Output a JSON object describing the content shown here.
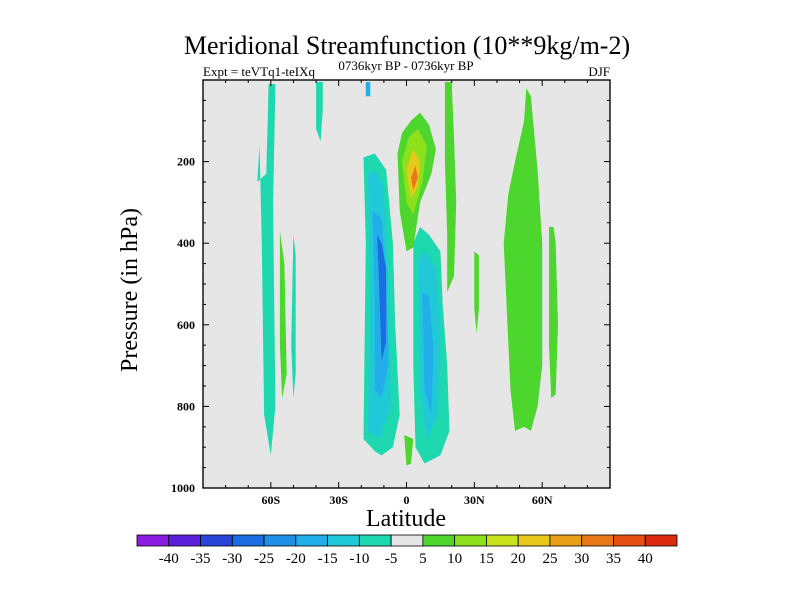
{
  "chart_data": {
    "type": "contour",
    "title": "Meridional Streamfunction (10**9kg/m-2)",
    "subtitle_left": "Expt = teVTq1-teIXq",
    "subtitle_center": "0736kyr BP - 0736kyr BP",
    "subtitle_right": "DJF",
    "xlabel": "Latitude",
    "ylabel": "Pressure (in hPa)",
    "xlim": [
      -90,
      90
    ],
    "ylim": [
      1000,
      0
    ],
    "x_ticks": [
      {
        "value": -60,
        "label": "60S"
      },
      {
        "value": -30,
        "label": "30S"
      },
      {
        "value": 0,
        "label": "0"
      },
      {
        "value": 30,
        "label": "30N"
      },
      {
        "value": 60,
        "label": "60N"
      }
    ],
    "y_ticks": [
      {
        "value": 200,
        "label": "200"
      },
      {
        "value": 400,
        "label": "400"
      },
      {
        "value": 600,
        "label": "600"
      },
      {
        "value": 800,
        "label": "800"
      },
      {
        "value": 1000,
        "label": "1000"
      }
    ],
    "colorbar": {
      "labels": [
        "-40",
        "-35",
        "-30",
        "-25",
        "-20",
        "-15",
        "-10",
        "-5",
        "5",
        "10",
        "15",
        "20",
        "25",
        "30",
        "35",
        "40"
      ],
      "colors": [
        "#8a1be0",
        "#5a1fd8",
        "#2a44d8",
        "#1a6ee0",
        "#1e8fe6",
        "#22aee8",
        "#20c8d8",
        "#1ed8b0",
        "#e6e6e6",
        "#4cd62e",
        "#8ee01c",
        "#c8e21a",
        "#e8c81a",
        "#e8a01a",
        "#e87818",
        "#e45014",
        "#dc2a10"
      ]
    },
    "regions": [
      {
        "level": -10,
        "color": "#1ed8b0",
        "points": [
          [
            -65,
            160
          ],
          [
            -64,
            400
          ],
          [
            -63,
            820
          ],
          [
            -60,
            920
          ],
          [
            -58,
            800
          ],
          [
            -59,
            300
          ],
          [
            -58,
            10
          ],
          [
            -61,
            10
          ],
          [
            -62,
            230
          ],
          [
            -66,
            250
          ]
        ]
      },
      {
        "level": -10,
        "color": "#1ed8b0",
        "points": [
          [
            -50,
            380
          ],
          [
            -51,
            650
          ],
          [
            -50,
            780
          ],
          [
            -49,
            720
          ],
          [
            -49,
            430
          ]
        ]
      },
      {
        "level": -10,
        "color": "#1ed8b0",
        "points": [
          [
            -40,
            5
          ],
          [
            -40,
            120
          ],
          [
            -38,
            150
          ],
          [
            -37,
            70
          ],
          [
            -37,
            5
          ]
        ]
      },
      {
        "level": -10,
        "color": "#1ed8b0",
        "points": [
          [
            -19,
            190
          ],
          [
            -18,
            400
          ],
          [
            -19,
            880
          ],
          [
            -14,
            910
          ],
          [
            -11,
            920
          ],
          [
            -6,
            900
          ],
          [
            -3,
            820
          ],
          [
            -5,
            600
          ],
          [
            -6,
            400
          ],
          [
            -9,
            220
          ],
          [
            -14,
            180
          ]
        ]
      },
      {
        "level": -15,
        "color": "#20c8d8",
        "points": [
          [
            -17,
            230
          ],
          [
            -16,
            500
          ],
          [
            -17,
            860
          ],
          [
            -12,
            880
          ],
          [
            -7,
            800
          ],
          [
            -8,
            500
          ],
          [
            -10,
            260
          ],
          [
            -14,
            220
          ]
        ]
      },
      {
        "level": -20,
        "color": "#22aee8",
        "points": [
          [
            -15,
            320
          ],
          [
            -14,
            520
          ],
          [
            -14,
            760
          ],
          [
            -11,
            780
          ],
          [
            -8,
            700
          ],
          [
            -9,
            480
          ],
          [
            -11,
            340
          ]
        ]
      },
      {
        "level": -25,
        "color": "#1a6ee0",
        "points": [
          [
            -13,
            380
          ],
          [
            -12,
            520
          ],
          [
            -11,
            690
          ],
          [
            -9,
            640
          ],
          [
            -9,
            460
          ],
          [
            -11,
            400
          ]
        ]
      },
      {
        "level": -10,
        "color": "#1ed8b0",
        "points": [
          [
            3,
            400
          ],
          [
            3,
            700
          ],
          [
            4,
            900
          ],
          [
            8,
            940
          ],
          [
            15,
            920
          ],
          [
            19,
            860
          ],
          [
            18,
            700
          ],
          [
            16,
            550
          ],
          [
            15,
            420
          ],
          [
            10,
            380
          ],
          [
            6,
            360
          ]
        ]
      },
      {
        "level": -15,
        "color": "#20c8d8",
        "points": [
          [
            5,
            440
          ],
          [
            6,
            760
          ],
          [
            9,
            880
          ],
          [
            14,
            820
          ],
          [
            15,
            600
          ],
          [
            13,
            460
          ],
          [
            8,
            420
          ]
        ]
      },
      {
        "level": -20,
        "color": "#22aee8",
        "points": [
          [
            7,
            520
          ],
          [
            8,
            760
          ],
          [
            11,
            820
          ],
          [
            12,
            660
          ],
          [
            10,
            530
          ]
        ]
      },
      {
        "level": -20,
        "color": "#22aee8",
        "points": [
          [
            -18,
            5
          ],
          [
            -18,
            40
          ],
          [
            -16,
            40
          ],
          [
            -16,
            5
          ]
        ]
      },
      {
        "level": 5,
        "color": "#4cd62e",
        "points": [
          [
            -4,
            180
          ],
          [
            -3,
            320
          ],
          [
            0,
            420
          ],
          [
            3,
            410
          ],
          [
            6,
            300
          ],
          [
            11,
            230
          ],
          [
            13,
            170
          ],
          [
            10,
            110
          ],
          [
            6,
            80
          ],
          [
            2,
            100
          ],
          [
            -2,
            130
          ]
        ]
      },
      {
        "level": 10,
        "color": "#8ee01c",
        "points": [
          [
            -2,
            200
          ],
          [
            0,
            300
          ],
          [
            3,
            330
          ],
          [
            7,
            250
          ],
          [
            9,
            160
          ],
          [
            5,
            120
          ],
          [
            1,
            140
          ]
        ]
      },
      {
        "level": 15,
        "color": "#e8c81a",
        "points": [
          [
            0,
            220
          ],
          [
            2,
            290
          ],
          [
            5,
            260
          ],
          [
            6,
            200
          ],
          [
            3,
            170
          ]
        ]
      },
      {
        "level": 20,
        "color": "#e87818",
        "points": [
          [
            2,
            240
          ],
          [
            3,
            270
          ],
          [
            5,
            240
          ],
          [
            4,
            210
          ]
        ]
      },
      {
        "level": 5,
        "color": "#4cd62e",
        "points": [
          [
            17,
            5
          ],
          [
            17,
            200
          ],
          [
            18,
            380
          ],
          [
            18,
            520
          ],
          [
            21,
            480
          ],
          [
            22,
            300
          ],
          [
            21,
            140
          ],
          [
            20,
            5
          ]
        ]
      },
      {
        "level": 5,
        "color": "#4cd62e",
        "points": [
          [
            -56,
            370
          ],
          [
            -56,
            650
          ],
          [
            -55,
            780
          ],
          [
            -53,
            720
          ],
          [
            -54,
            450
          ]
        ]
      },
      {
        "level": 5,
        "color": "#4cd62e",
        "points": [
          [
            -1,
            870
          ],
          [
            0,
            945
          ],
          [
            2,
            940
          ],
          [
            3,
            880
          ]
        ]
      },
      {
        "level": 5,
        "color": "#4cd62e",
        "points": [
          [
            45,
            280
          ],
          [
            43,
            400
          ],
          [
            46,
            760
          ],
          [
            48,
            860
          ],
          [
            52,
            850
          ],
          [
            55,
            860
          ],
          [
            58,
            800
          ],
          [
            60,
            700
          ],
          [
            60,
            400
          ],
          [
            58,
            220
          ],
          [
            56,
            100
          ],
          [
            55,
            40
          ],
          [
            53,
            20
          ],
          [
            52,
            100
          ],
          [
            50,
            150
          ],
          [
            48,
            200
          ]
        ]
      },
      {
        "level": 5,
        "color": "#4cd62e",
        "points": [
          [
            63,
            360
          ],
          [
            63,
            650
          ],
          [
            64,
            780
          ],
          [
            66,
            770
          ],
          [
            67,
            600
          ],
          [
            66,
            400
          ],
          [
            65,
            360
          ]
        ]
      },
      {
        "level": 5,
        "color": "#4cd62e",
        "points": [
          [
            30,
            420
          ],
          [
            30,
            560
          ],
          [
            31,
            620
          ],
          [
            32,
            560
          ],
          [
            32,
            430
          ]
        ]
      }
    ]
  }
}
